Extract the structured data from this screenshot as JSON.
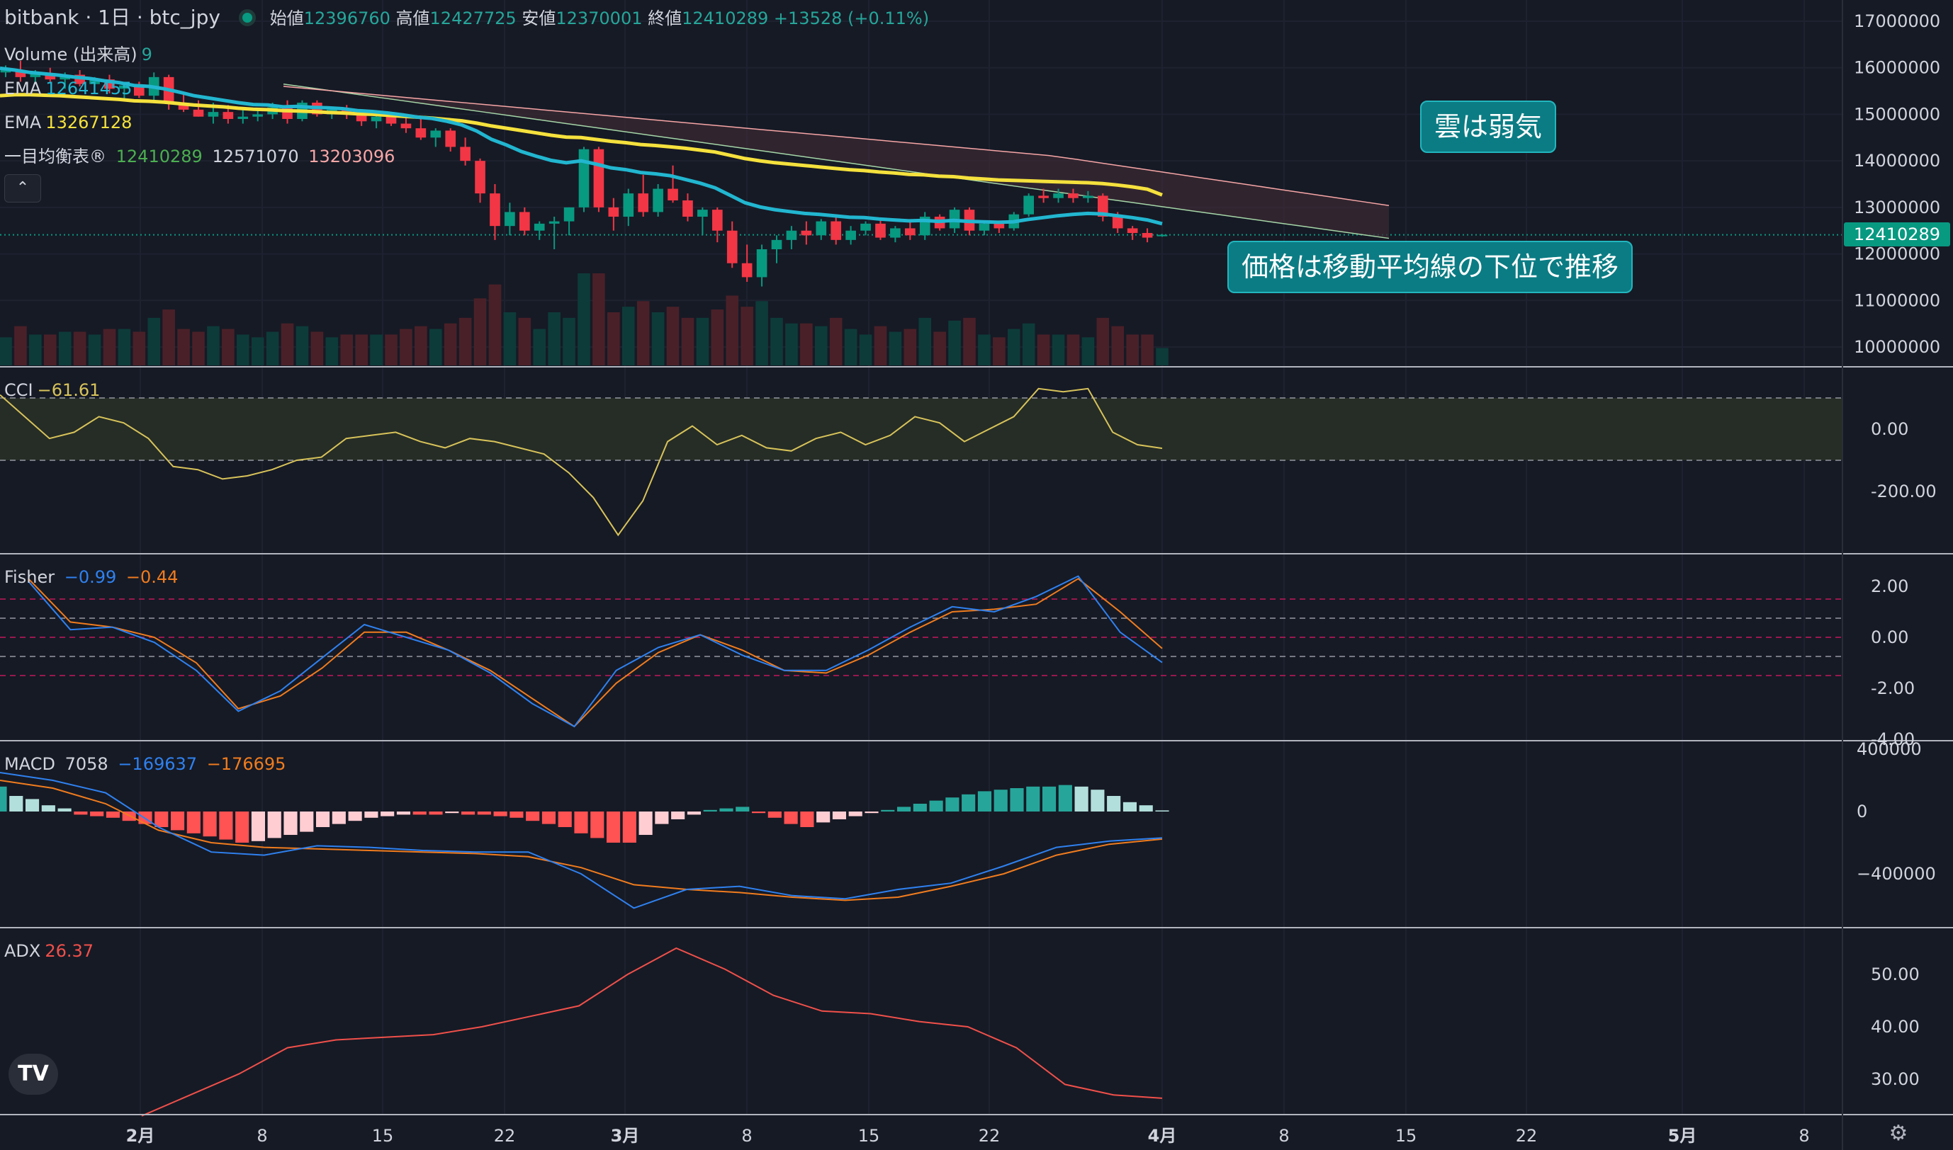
{
  "header": {
    "title": "bitbank · 1日 · btc_jpy",
    "open_label": "始値",
    "open": "12396760",
    "high_label": "高値",
    "high": "12427725",
    "low_label": "安値",
    "low": "12370001",
    "close_label": "終値",
    "close": "12410289",
    "change": "+13528 (+0.11%)"
  },
  "legend": {
    "volume_label": "Volume (出来高)",
    "volume_value": "9",
    "ema1_label": "EMA",
    "ema1_value": "12641455",
    "ema2_label": "EMA",
    "ema2_value": "13267128",
    "ichimoku_label": "一目均衡表®",
    "ichimoku_v1": "12410289",
    "ichimoku_v2": "12571070",
    "ichimoku_v3": "13203096",
    "cci_label": "CCI",
    "cci_value": "−61.61",
    "fisher_label": "Fisher",
    "fisher_v1": "−0.99",
    "fisher_v2": "−0.44",
    "macd_label": "MACD",
    "macd_v0": "7058",
    "macd_v1": "−169637",
    "macd_v2": "−176695",
    "adx_label": "ADX",
    "adx_value": "26.37"
  },
  "annotations": {
    "cloud_note": "雲は弱気",
    "ma_note": "価格は移動平均線の下位で推移"
  },
  "price_tag": "12410289",
  "controls": {
    "collapse_icon": "chevron-up-icon",
    "logo": "tradingview-logo",
    "settings_icon": "gear-icon"
  },
  "logo_text": "TV",
  "colors": {
    "background": "#161a25",
    "up": "#089981",
    "down": "#f23645",
    "ema_fast": "#22b6d0",
    "ema_slow": "#f5e13d",
    "cci": "#d8c35a",
    "fisher_1": "#2f81ef",
    "fisher_2": "#f07c1e",
    "macd": "#2f81ef",
    "signal": "#f07c1e",
    "adx": "#f0504a"
  },
  "chart_data": [
    {
      "type": "candlestick",
      "title": "bitbank · 1日 · btc_jpy",
      "y_ticks": [
        17000000,
        16000000,
        15000000,
        14000000,
        13000000,
        12000000,
        11000000,
        10000000
      ],
      "x_ticks": [
        "2月",
        "8",
        "15",
        "22",
        "3月",
        "8",
        "15",
        "22",
        "4月",
        "8",
        "15",
        "22",
        "5月",
        "8"
      ],
      "last_price": 12410289,
      "candles": [
        [
          15900000,
          16050000,
          15800000,
          15950000
        ],
        [
          15950000,
          16150000,
          15700000,
          15800000
        ],
        [
          15800000,
          15950000,
          15650000,
          15880000
        ],
        [
          15880000,
          16000000,
          15700000,
          15750000
        ],
        [
          15750000,
          15900000,
          15550000,
          15850000
        ],
        [
          15850000,
          15950000,
          15600000,
          15650000
        ],
        [
          15650000,
          15800000,
          15500000,
          15750000
        ],
        [
          15750000,
          15850000,
          15450000,
          15550000
        ],
        [
          15550000,
          15700000,
          15300000,
          15620000
        ],
        [
          15620000,
          15700000,
          15350000,
          15400000
        ],
        [
          15400000,
          15900000,
          15300000,
          15800000
        ],
        [
          15800000,
          15850000,
          15100000,
          15250000
        ],
        [
          15250000,
          15450000,
          15050000,
          15100000
        ],
        [
          15100000,
          15300000,
          14950000,
          14950000
        ],
        [
          14950000,
          15250000,
          14800000,
          15050000
        ],
        [
          15050000,
          15200000,
          14800000,
          14900000
        ],
        [
          14900000,
          15100000,
          14800000,
          14950000
        ],
        [
          14950000,
          15100000,
          14850000,
          15000000
        ],
        [
          15000000,
          15250000,
          14900000,
          15150000
        ],
        [
          15150000,
          15300000,
          14800000,
          14900000
        ],
        [
          14900000,
          15300000,
          14850000,
          15250000
        ],
        [
          15250000,
          15300000,
          14950000,
          15000000
        ],
        [
          15000000,
          15150000,
          14900000,
          15100000
        ],
        [
          15100000,
          15200000,
          14900000,
          15000000
        ],
        [
          15000000,
          15050000,
          14750000,
          14850000
        ],
        [
          14850000,
          15000000,
          14700000,
          14950000
        ],
        [
          14950000,
          15050000,
          14750000,
          14800000
        ],
        [
          14800000,
          15000000,
          14600000,
          14700000
        ],
        [
          14700000,
          14900000,
          14450000,
          14500000
        ],
        [
          14500000,
          14700000,
          14300000,
          14650000
        ],
        [
          14650000,
          14700000,
          14200000,
          14300000
        ],
        [
          14300000,
          14500000,
          13900000,
          14000000
        ],
        [
          14000000,
          14050000,
          13100000,
          13300000
        ],
        [
          13300000,
          13500000,
          12300000,
          12600000
        ],
        [
          12600000,
          13100000,
          12400000,
          12900000
        ],
        [
          12900000,
          13000000,
          12400000,
          12500000
        ],
        [
          12500000,
          12700000,
          12300000,
          12650000
        ],
        [
          12650000,
          12800000,
          12100000,
          12700000
        ],
        [
          12700000,
          13000000,
          12400000,
          13000000
        ],
        [
          13000000,
          14300000,
          12900000,
          14250000
        ],
        [
          14250000,
          14300000,
          12900000,
          13000000
        ],
        [
          13000000,
          13200000,
          12500000,
          12800000
        ],
        [
          12800000,
          13400000,
          12600000,
          13300000
        ],
        [
          13300000,
          13700000,
          12800000,
          12900000
        ],
        [
          12900000,
          13500000,
          12800000,
          13400000
        ],
        [
          13400000,
          13900000,
          13100000,
          13150000
        ],
        [
          13150000,
          13300000,
          12700000,
          12800000
        ],
        [
          12800000,
          13000000,
          12400000,
          12950000
        ],
        [
          12950000,
          13000000,
          12250000,
          12500000
        ],
        [
          12500000,
          12700000,
          11700000,
          11800000
        ],
        [
          11800000,
          12200000,
          11400000,
          11500000
        ],
        [
          11500000,
          12200000,
          11300000,
          12100000
        ],
        [
          12100000,
          12400000,
          11800000,
          12300000
        ],
        [
          12300000,
          12600000,
          12100000,
          12500000
        ],
        [
          12500000,
          12700000,
          12200000,
          12400000
        ],
        [
          12400000,
          12750000,
          12300000,
          12700000
        ],
        [
          12700000,
          12800000,
          12200000,
          12300000
        ],
        [
          12300000,
          12600000,
          12200000,
          12500000
        ],
        [
          12500000,
          12700000,
          12400000,
          12650000
        ],
        [
          12650000,
          12750000,
          12300000,
          12350000
        ],
        [
          12350000,
          12600000,
          12250000,
          12550000
        ],
        [
          12550000,
          12700000,
          12300000,
          12400000
        ],
        [
          12400000,
          12900000,
          12300000,
          12800000
        ],
        [
          12800000,
          12850000,
          12500000,
          12550000
        ],
        [
          12550000,
          13000000,
          12450000,
          12950000
        ],
        [
          12950000,
          13000000,
          12400000,
          12500000
        ],
        [
          12500000,
          12700000,
          12400000,
          12650000
        ],
        [
          12650000,
          12700000,
          12450000,
          12550000
        ],
        [
          12550000,
          12900000,
          12500000,
          12850000
        ],
        [
          12850000,
          13300000,
          12800000,
          13250000
        ],
        [
          13250000,
          13400000,
          13100000,
          13200000
        ],
        [
          13200000,
          13400000,
          13100000,
          13300000
        ],
        [
          13300000,
          13400000,
          13100000,
          13200000
        ],
        [
          13200000,
          13350000,
          13100000,
          13250000
        ],
        [
          13250000,
          13300000,
          12700000,
          12800000
        ],
        [
          12800000,
          12900000,
          12450000,
          12550000
        ],
        [
          12550000,
          12600000,
          12300000,
          12450000
        ],
        [
          12450000,
          12550000,
          12250000,
          12350000
        ],
        [
          12396760,
          12427725,
          12370001,
          12410289
        ]
      ],
      "ema_fast": [
        15990000,
        15950000,
        15900000,
        15870000,
        15840000,
        15800000,
        15770000,
        15720000,
        15680000,
        15620000,
        15600000,
        15550000,
        15480000,
        15400000,
        15350000,
        15300000,
        15250000,
        15210000,
        15200000,
        15160000,
        15170000,
        15150000,
        15140000,
        15120000,
        15080000,
        15060000,
        15030000,
        14990000,
        14940000,
        14910000,
        14850000,
        14770000,
        14640000,
        14460000,
        14340000,
        14200000,
        14100000,
        14010000,
        13960000,
        14000000,
        13930000,
        13850000,
        13810000,
        13750000,
        13720000,
        13680000,
        13600000,
        13520000,
        13420000,
        13260000,
        13100000,
        13010000,
        12950000,
        12910000,
        12870000,
        12850000,
        12820000,
        12790000,
        12780000,
        12750000,
        12730000,
        12710000,
        12720000,
        12700000,
        12720000,
        12700000,
        12690000,
        12680000,
        12690000,
        12740000,
        12780000,
        12820000,
        12850000,
        12870000,
        12860000,
        12820000,
        12780000,
        12730000,
        12650000
      ],
      "ema_slow": [
        15400000,
        15420000,
        15420000,
        15410000,
        15400000,
        15380000,
        15360000,
        15340000,
        15320000,
        15290000,
        15280000,
        15260000,
        15230000,
        15200000,
        15180000,
        15160000,
        15130000,
        15110000,
        15100000,
        15080000,
        15070000,
        15060000,
        15040000,
        15030000,
        15010000,
        15000000,
        14980000,
        14960000,
        14940000,
        14920000,
        14890000,
        14860000,
        14810000,
        14750000,
        14700000,
        14650000,
        14600000,
        14550000,
        14510000,
        14500000,
        14460000,
        14420000,
        14390000,
        14350000,
        14330000,
        14300000,
        14270000,
        14230000,
        14190000,
        14120000,
        14050000,
        14000000,
        13960000,
        13930000,
        13900000,
        13870000,
        13840000,
        13810000,
        13790000,
        13760000,
        13740000,
        13710000,
        13700000,
        13670000,
        13660000,
        13630000,
        13610000,
        13590000,
        13580000,
        13570000,
        13560000,
        13550000,
        13540000,
        13530000,
        13510000,
        13480000,
        13440000,
        13390000,
        13267128
      ]
    },
    {
      "type": "line",
      "title": "CCI",
      "y_ticks": [
        0.0,
        -200.0
      ],
      "bands": [
        100,
        -100
      ],
      "values": [
        110,
        40,
        -30,
        -10,
        40,
        20,
        -30,
        -120,
        -130,
        -160,
        -150,
        -130,
        -100,
        -90,
        -30,
        -20,
        -10,
        -40,
        -60,
        -30,
        -40,
        -60,
        -80,
        -140,
        -220,
        -340,
        -230,
        -40,
        10,
        -50,
        -20,
        -60,
        -70,
        -30,
        -10,
        -50,
        -20,
        40,
        20,
        -40,
        0,
        40,
        130,
        120,
        130,
        -10,
        -50,
        -61.61
      ]
    },
    {
      "type": "line",
      "title": "Fisher",
      "y_ticks": [
        2.0,
        0.0,
        -2.0,
        -4.0
      ],
      "bands": [
        1.5,
        0.75,
        0,
        -0.75,
        -1.5
      ],
      "series": [
        {
          "name": "Fisher",
          "values": [
            2.2,
            0.3,
            0.4,
            -0.2,
            -1.3,
            -2.9,
            -2.1,
            -0.8,
            0.5,
            0,
            -0.5,
            -1.4,
            -2.6,
            -3.5,
            -1.3,
            -0.4,
            0.1,
            -0.7,
            -1.3,
            -1.3,
            -0.5,
            0.4,
            1.2,
            1,
            1.6,
            2.4,
            0.2,
            -0.99
          ]
        },
        {
          "name": "Trigger",
          "values": [
            2.3,
            0.6,
            0.4,
            0,
            -1,
            -2.8,
            -2.3,
            -1.2,
            0.2,
            0.2,
            -0.5,
            -1.3,
            -2.4,
            -3.5,
            -1.8,
            -0.6,
            0.1,
            -0.5,
            -1.3,
            -1.4,
            -0.7,
            0.2,
            1,
            1.1,
            1.3,
            2.3,
            1,
            -0.44
          ]
        }
      ]
    },
    {
      "type": "bar+line",
      "title": "MACD",
      "y_ticks": [
        400000,
        0,
        -400000
      ],
      "histogram": [
        160000,
        100000,
        80000,
        40000,
        20000,
        -20000,
        -30000,
        -40000,
        -60000,
        -80000,
        -100000,
        -120000,
        -140000,
        -160000,
        -180000,
        -200000,
        -190000,
        -170000,
        -150000,
        -130000,
        -100000,
        -80000,
        -60000,
        -40000,
        -30000,
        -20000,
        -20000,
        -20000,
        -10000,
        -20000,
        -20000,
        -30000,
        -40000,
        -60000,
        -80000,
        -100000,
        -140000,
        -170000,
        -200000,
        -200000,
        -150000,
        -80000,
        -50000,
        -20000,
        10000,
        20000,
        30000,
        -10000,
        -40000,
        -80000,
        -100000,
        -70000,
        -50000,
        -30000,
        -10000,
        10000,
        30000,
        50000,
        70000,
        90000,
        110000,
        130000,
        140000,
        150000,
        160000,
        160000,
        170000,
        160000,
        140000,
        100000,
        60000,
        40000,
        7058
      ],
      "series": [
        {
          "name": "MACD",
          "values": [
            250000,
            200000,
            120000,
            -100000,
            -260000,
            -280000,
            -220000,
            -230000,
            -250000,
            -260000,
            -260000,
            -400000,
            -620000,
            -500000,
            -480000,
            -540000,
            -560000,
            -500000,
            -460000,
            -350000,
            -230000,
            -190000,
            -169637
          ]
        },
        {
          "name": "Signal",
          "values": [
            200000,
            150000,
            50000,
            -120000,
            -200000,
            -230000,
            -240000,
            -250000,
            -260000,
            -270000,
            -290000,
            -360000,
            -470000,
            -500000,
            -520000,
            -550000,
            -570000,
            -550000,
            -480000,
            -400000,
            -280000,
            -210000,
            -176695
          ]
        }
      ]
    },
    {
      "type": "line",
      "title": "ADX",
      "y_ticks": [
        50.0,
        40.0,
        30.0
      ],
      "values": [
        23,
        27,
        31,
        36,
        37.5,
        38,
        38.5,
        40,
        42,
        44,
        50,
        55,
        51,
        46,
        43,
        42.5,
        41,
        40,
        36,
        29,
        27,
        26.37
      ]
    }
  ]
}
